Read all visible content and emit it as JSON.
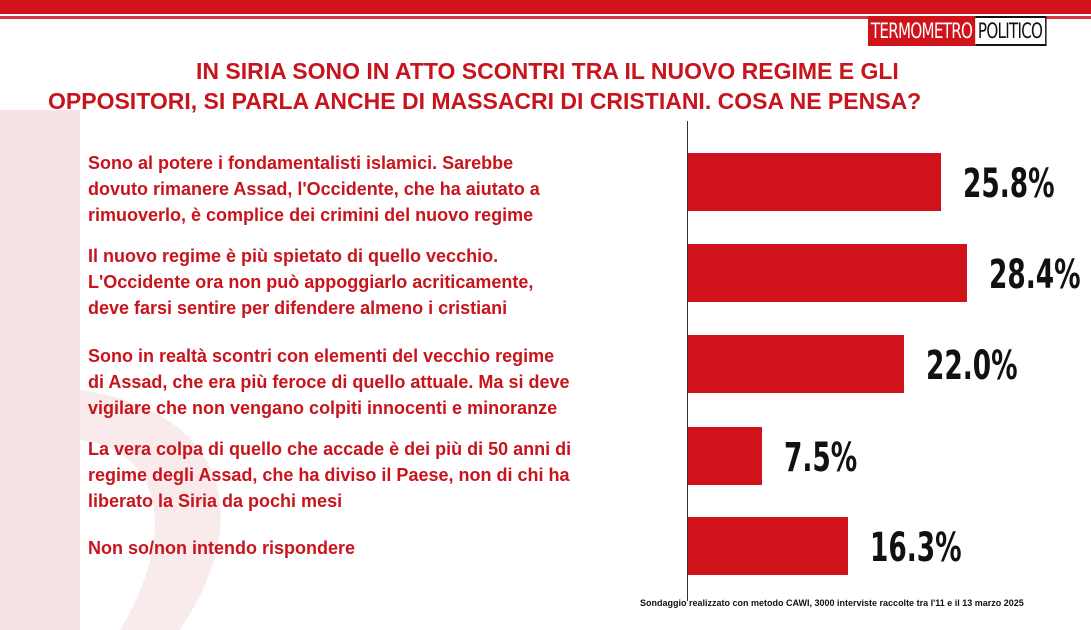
{
  "header": {
    "logo_part1": "TERMOMETRO",
    "logo_part2": "POLITICO",
    "title_line1": "IN SIRIA SONO IN ATTO SCONTRI TRA IL NUOVO REGIME E GLI",
    "title_line2": "OPPOSITORI, SI PARLA ANCHE DI MASSACRI DI CRISTIANI. COSA NE PENSA?"
  },
  "colors": {
    "accent": "#d0121b",
    "text_red": "#c8141c",
    "value_text": "#111111"
  },
  "chart_data": {
    "type": "bar",
    "orientation": "horizontal",
    "title": "IN SIRIA SONO IN ATTO SCONTRI TRA IL NUOVO REGIME E GLI OPPOSITORI, SI PARLA ANCHE DI MASSACRI DI CRISTIANI. COSA NE PENSA?",
    "categories": [
      "Sono al potere i fondamentalisti islamici. Sarebbe dovuto rimanere Assad, l'Occidente, che ha aiutato a rimuoverlo, è complice dei crimini del nuovo regime",
      "Il nuovo regime è più spietato di quello vecchio. L'Occidente ora non può appoggiarlo acriticamente, deve farsi sentire per difendere almeno i cristiani",
      "Sono in realtà  scontri con elementi del vecchio regime di Assad, che era più feroce di quello attuale. Ma si deve vigilare che non vengano colpiti innocenti e minoranze",
      "La vera colpa di quello che accade è dei più di 50 anni di regime degli Assad, che ha diviso il Paese, non di chi ha liberato la Siria da pochi mesi",
      "Non so/non intendo rispondere"
    ],
    "values": [
      25.8,
      28.4,
      22.0,
      7.5,
      16.3
    ],
    "value_labels": [
      "25.8%",
      "28.4%",
      "22.0%",
      "7.5%",
      "16.3%"
    ],
    "xlim": [
      0,
      40
    ],
    "grid": false,
    "legend": "none"
  },
  "footer": {
    "note": "Sondaggio realizzato con metodo CAWI, 3000 interviste raccolte tra l'11 e il 13 marzo 2025"
  }
}
